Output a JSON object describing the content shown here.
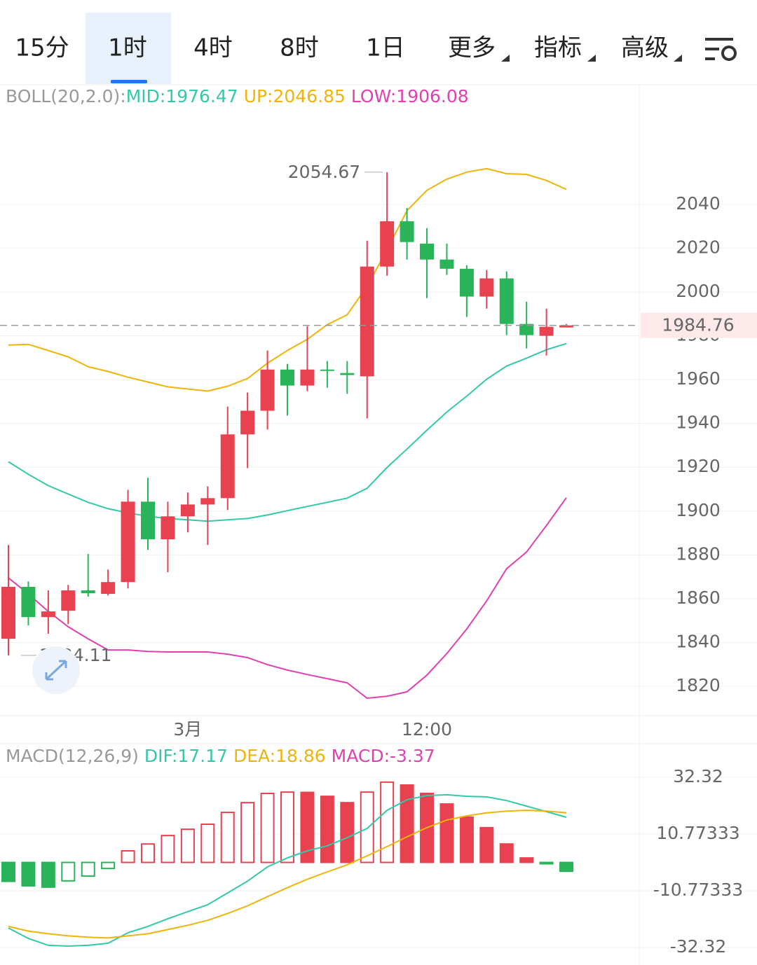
{
  "tabs": {
    "items": [
      "15分",
      "1时",
      "4时",
      "8时",
      "1日",
      "更多",
      "指标",
      "高级"
    ],
    "active": 1
  },
  "chart_data": [
    {
      "type": "candlestick",
      "title": "BOLL(20,2.0):",
      "legend": [
        "MID:1976.47",
        "UP:2046.85",
        "LOW:1906.08"
      ],
      "categories": [
        null,
        null,
        null,
        null,
        null,
        null,
        null,
        null,
        null,
        "3月",
        null,
        null,
        null,
        null,
        null,
        null,
        null,
        null,
        null,
        null,
        null,
        "12:00",
        null,
        null,
        null,
        null,
        null,
        null,
        null
      ],
      "open": [
        1841.7,
        1865.4,
        1851.6,
        1854.5,
        1863.8,
        1862.2,
        1867.6,
        1904.3,
        1887.1,
        1897.6,
        1903.0,
        1905.9,
        1935.0,
        1945.8,
        1964.6,
        1957.3,
        1964.6,
        1963.0,
        1961.5,
        2011.6,
        2032.3,
        2022.1,
        2014.8,
        2010.6,
        1997.9,
        2006.2,
        1985.4,
        1980.0,
        1983.8
      ],
      "high": [
        1884.5,
        1867.9,
        1863.8,
        1866.3,
        1880.4,
        1873.3,
        1909.7,
        1915.2,
        1904.3,
        1908.5,
        1911.3,
        1947.7,
        1954.1,
        1973.3,
        1967.2,
        1984.4,
        1968.5,
        1968.5,
        2023.4,
        2054.67,
        2038.4,
        2029.1,
        2022.1,
        2012.2,
        2010.0,
        2009.4,
        1995.6,
        1992.4,
        1985.4
      ],
      "low": [
        1834.11,
        1847.8,
        1844.0,
        1848.4,
        1860.9,
        1861.5,
        1864.7,
        1882.3,
        1872.1,
        1890.3,
        1884.5,
        1900.5,
        1919.6,
        1937.2,
        1943.6,
        1954.7,
        1956.3,
        1953.5,
        1942.3,
        2007.4,
        2014.8,
        1997.2,
        2007.8,
        1988.6,
        1992.4,
        1980.3,
        1974.2,
        1971.0,
        1983.8
      ],
      "close": [
        1865.4,
        1851.6,
        1854.2,
        1863.8,
        1862.5,
        1867.6,
        1904.3,
        1887.1,
        1897.6,
        1903.0,
        1905.9,
        1935.0,
        1945.8,
        1964.6,
        1957.3,
        1964.6,
        1964.0,
        1962.1,
        2011.6,
        2032.3,
        2022.8,
        2014.8,
        2010.6,
        1997.9,
        2006.2,
        1985.4,
        1980.3,
        1984.1,
        1984.76
      ],
      "up_color": "#e8414f",
      "down_color": "#2ab459",
      "series": [
        {
          "name": "MID",
          "color": "#33c9a8",
          "values": [
            1922.5,
            1916.8,
            1911.6,
            1907.8,
            1904.0,
            1901.1,
            1899.2,
            1897.6,
            1896.6,
            1896.0,
            1895.4,
            1896.0,
            1896.6,
            1898.2,
            1900.2,
            1902.1,
            1904.0,
            1905.9,
            1910.4,
            1919.9,
            1928.3,
            1936.9,
            1945.2,
            1952.5,
            1960.2,
            1966.2,
            1969.8,
            1973.6,
            1976.47
          ]
        },
        {
          "name": "UP",
          "color": "#efb40a",
          "values": [
            1975.8,
            1976.1,
            1973.3,
            1970.4,
            1965.9,
            1963.7,
            1961.1,
            1958.9,
            1956.7,
            1955.7,
            1954.8,
            1957.0,
            1960.5,
            1967.5,
            1973.3,
            1978.4,
            1985.1,
            1989.6,
            2002.6,
            2019.2,
            2037.1,
            2046.4,
            2051.5,
            2054.7,
            2056.3,
            2054.0,
            2053.7,
            2050.9,
            2046.85
          ]
        },
        {
          "name": "LOW",
          "color": "#e040b0",
          "values": [
            1869.5,
            1862.2,
            1854.2,
            1847.2,
            1841.7,
            1836.6,
            1836.6,
            1835.9,
            1835.7,
            1835.7,
            1835.7,
            1834.7,
            1833.1,
            1829.9,
            1827.4,
            1825.4,
            1823.5,
            1821.6,
            1814.6,
            1815.5,
            1817.5,
            1825.1,
            1835.0,
            1846.2,
            1859.0,
            1873.7,
            1881.3,
            1893.4,
            1906.08
          ]
        }
      ],
      "ylim": [
        1806.6,
        2094.6
      ],
      "yticks": [
        1820,
        1840,
        1860,
        1880,
        1900,
        1920,
        1940,
        1960,
        1980,
        2000,
        2020,
        2040
      ],
      "grid": true
    },
    {
      "type": "macd",
      "title": "MACD(12,26,9)",
      "legend": [
        "DIF:17.17",
        "DEA:18.86",
        "MACD:-3.37"
      ],
      "values": [
        -7.2,
        -8.9,
        -9.4,
        -7.0,
        -5.2,
        -2.3,
        4.4,
        7.0,
        10.2,
        12.6,
        14.5,
        19.0,
        22.7,
        26.2,
        26.7,
        26.6,
        25.1,
        22.7,
        26.7,
        30.5,
        29.4,
        26.2,
        22.2,
        17.2,
        13.2,
        7.0,
        1.7,
        -0.4,
        -3.37
      ],
      "up_color": "#e8414f",
      "down_color": "#2ab459",
      "series": [
        {
          "name": "DIF",
          "color": "#33c9a8",
          "values": [
            -24.9,
            -28.9,
            -31.5,
            -31.8,
            -31.5,
            -30.7,
            -26.7,
            -24.3,
            -21.4,
            -18.7,
            -16.1,
            -11.6,
            -7.1,
            -1.7,
            1.7,
            4.4,
            6.3,
            9.4,
            12.9,
            19.8,
            23.8,
            25.4,
            25.7,
            25.1,
            24.9,
            23.5,
            21.4,
            19.3,
            17.17
          ]
        },
        {
          "name": "DEA",
          "color": "#efb40a",
          "values": [
            -24.3,
            -26.1,
            -27.1,
            -27.9,
            -28.4,
            -28.7,
            -27.9,
            -27.1,
            -25.5,
            -23.9,
            -22.0,
            -19.4,
            -16.5,
            -13.0,
            -9.6,
            -6.4,
            -3.6,
            -0.9,
            2.5,
            6.0,
            9.7,
            13.2,
            16.1,
            17.7,
            18.8,
            19.5,
            19.8,
            19.5,
            18.86
          ]
        }
      ],
      "ylim": [
        -38.97,
        45.09
      ],
      "yticks": [
        -32.32,
        -10.77333,
        10.77333,
        32.32
      ],
      "grid": true
    }
  ]
}
